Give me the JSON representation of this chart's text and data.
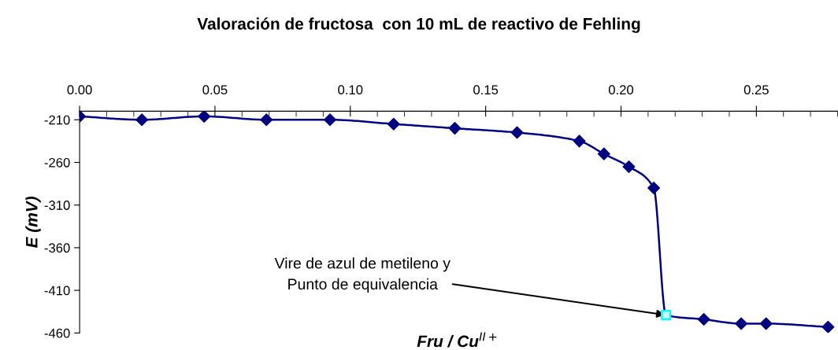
{
  "chart_data": {
    "type": "line",
    "title": "Valoración de fructosa  con 10 mL de reactivo de Fehling",
    "xlabel": "Fru / Cu$^{II+}$",
    "ylabel": "E (mV)",
    "xlim": [
      0,
      0.28
    ],
    "xticks": [
      {
        "value": 0,
        "label": "0.00"
      },
      {
        "value": 0.05,
        "label": "0.05"
      },
      {
        "value": 0.1,
        "label": "0.10"
      },
      {
        "value": 0.15,
        "label": "0.15"
      },
      {
        "value": 0.2,
        "label": "0.20"
      },
      {
        "value": 0.25,
        "label": "0.25"
      }
    ],
    "ylim": [
      -460,
      -200
    ],
    "yticks": [
      -210,
      -260,
      -310,
      -360,
      -410,
      -460
    ],
    "grid": false,
    "legend": false,
    "series": [
      {
        "color": "#000080",
        "marker": "none",
        "x": [
          0,
          0.023,
          0.046,
          0.069,
          0.0925,
          0.116,
          0.1386,
          0.1616,
          0.1846,
          0.1937,
          0.2029,
          0.2121,
          0.2166,
          0.2306,
          0.2444,
          0.2536,
          0.2765
        ],
        "values": [
          -206,
          -210,
          -206,
          -210,
          -210,
          -215,
          -220,
          -225,
          -235,
          -250,
          -265,
          -290,
          -439,
          -444,
          -449,
          -449,
          -453
        ]
      },
      {
        "type": "scatter",
        "color": "#000080",
        "marker": "diamond",
        "x": [
          0,
          0.023,
          0.046,
          0.069,
          0.0925,
          0.116,
          0.1386,
          0.1616,
          0.1846,
          0.1937,
          0.2029,
          0.2121,
          0.2306,
          0.2444,
          0.2536,
          0.2765
        ],
        "values": [
          -206,
          -210,
          -206,
          -210,
          -210,
          -215,
          -220,
          -225,
          -235,
          -250,
          -265,
          -290,
          -444,
          -449,
          -449,
          -453
        ]
      },
      {
        "type": "scatter",
        "color": "#00ffff",
        "marker": "square",
        "x": [
          0.2166
        ],
        "values": [
          -439
        ]
      }
    ],
    "annotations": [
      {
        "text": "Vire de azul de metileno y\nPunto de equivalencia",
        "x": 0.2166,
        "y": -439
      }
    ]
  }
}
